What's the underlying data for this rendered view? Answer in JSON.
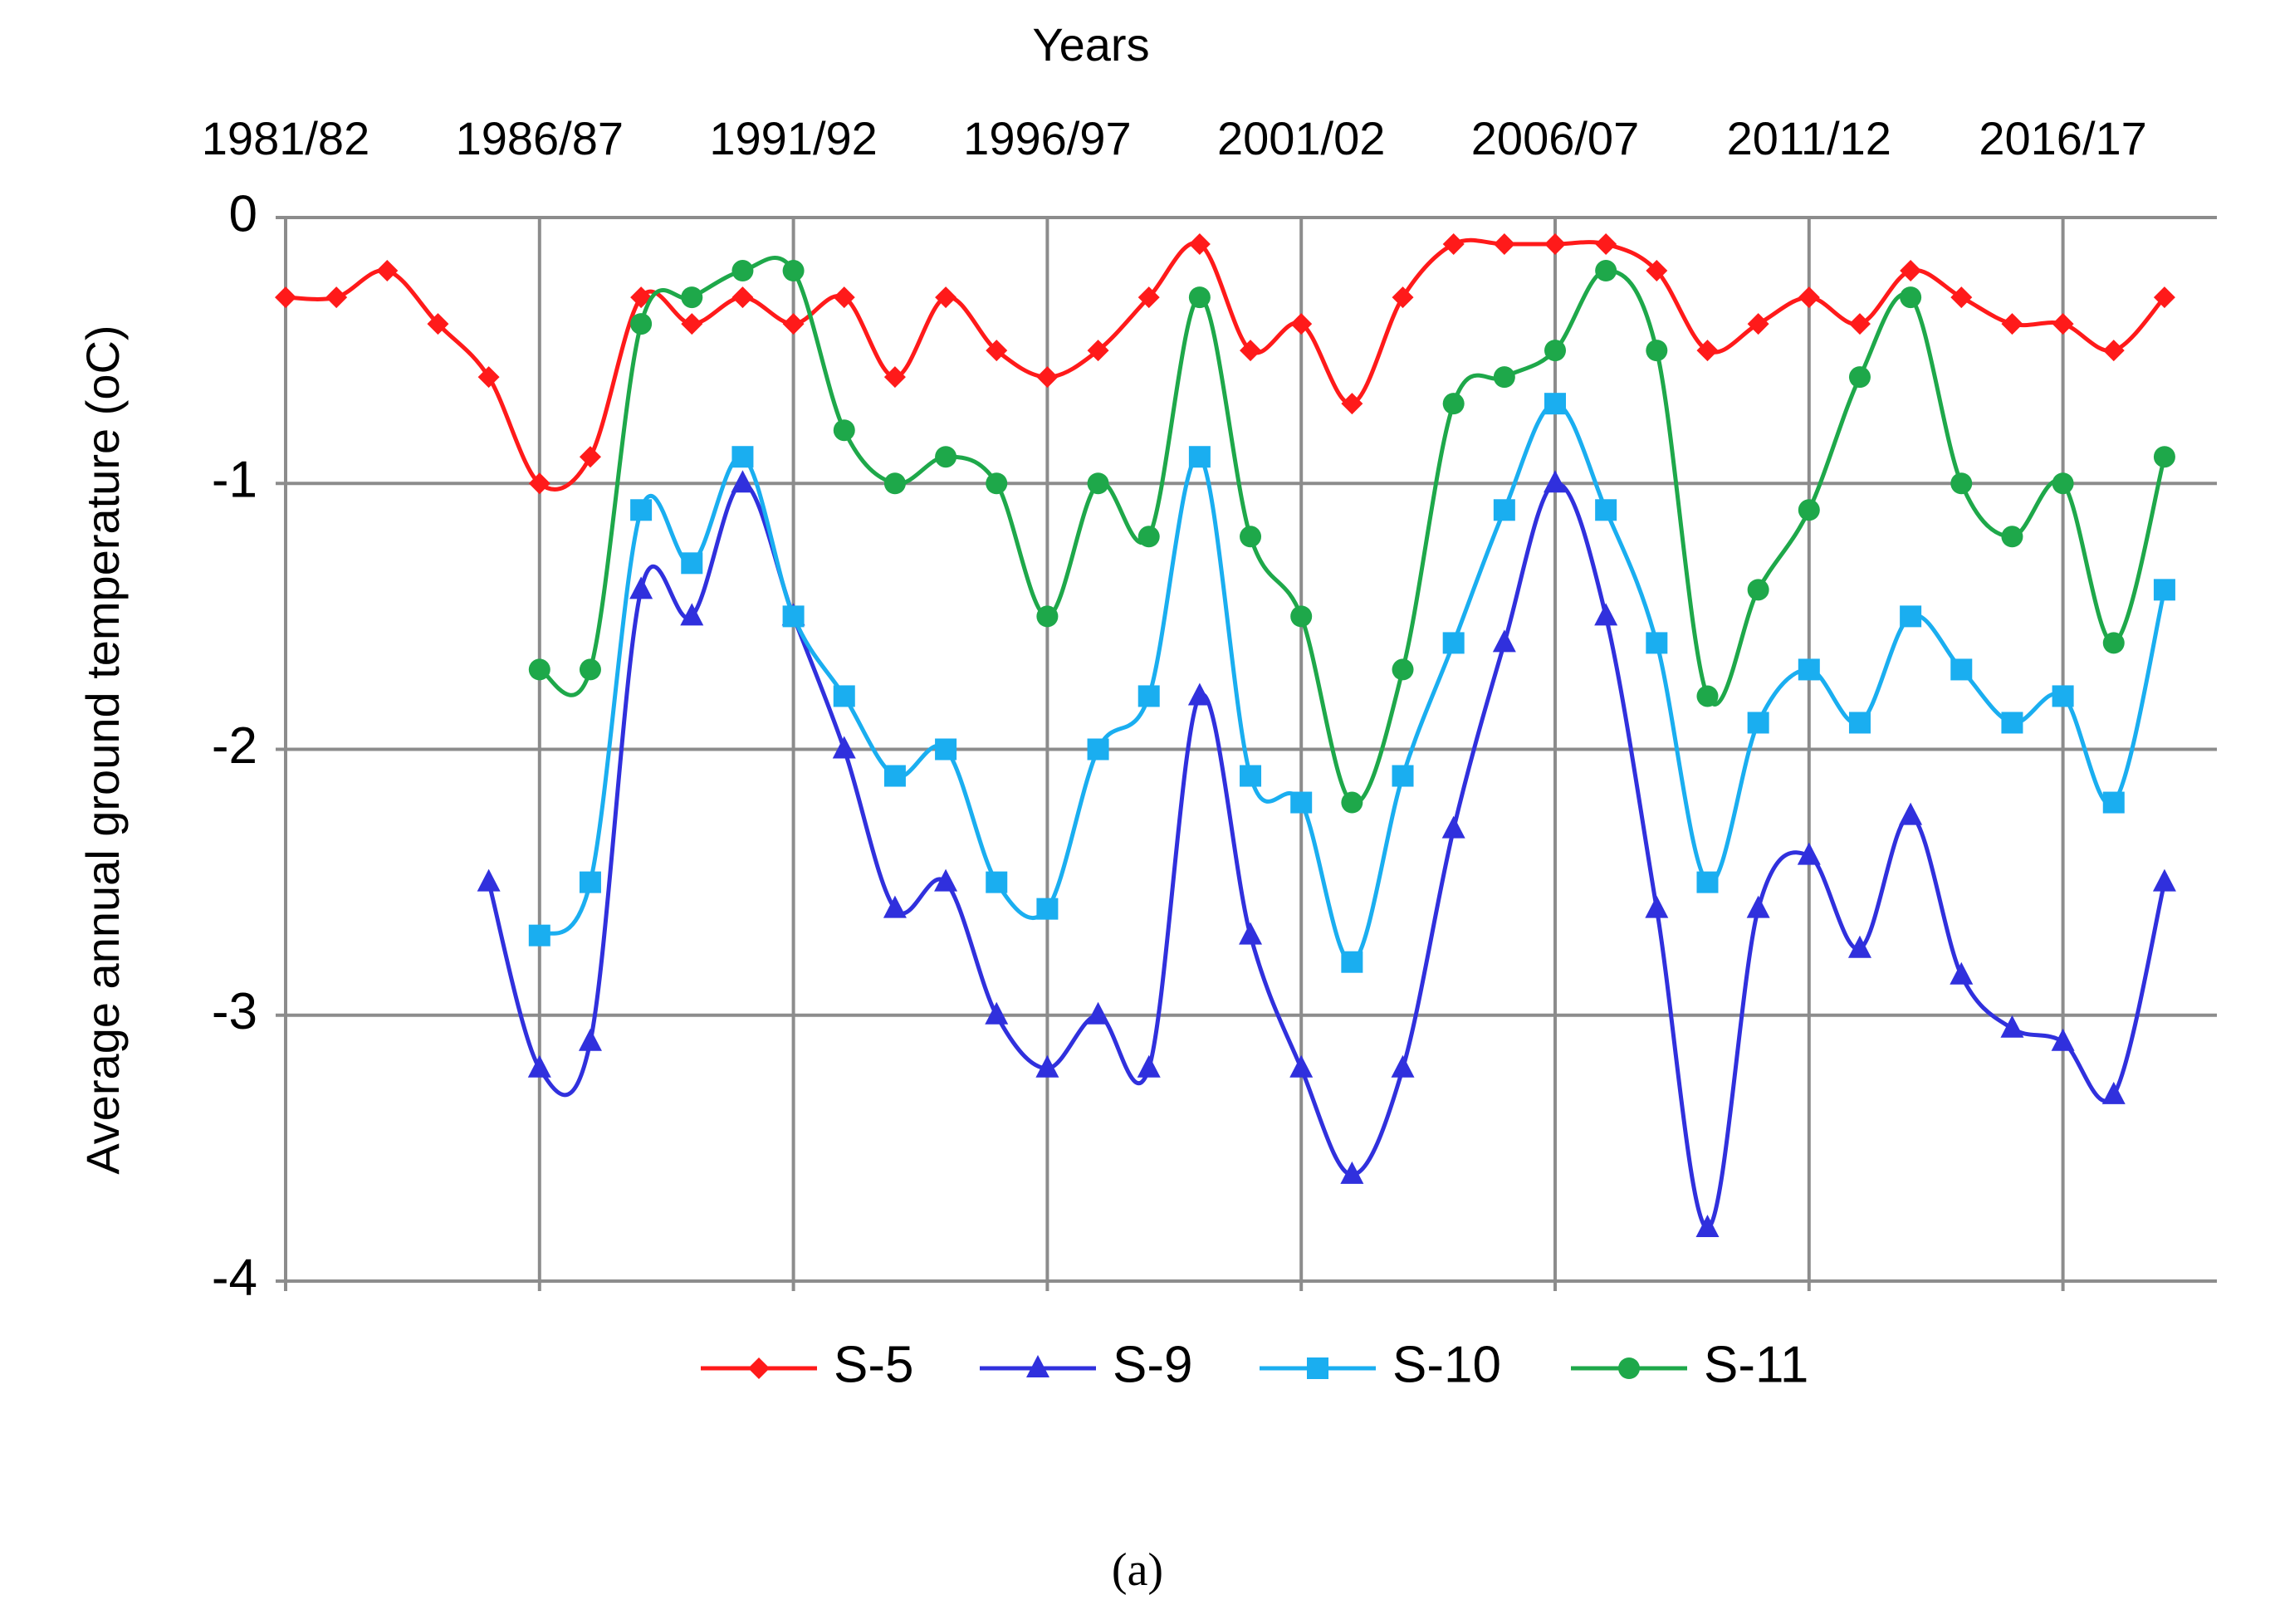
{
  "chart_data": {
    "type": "line",
    "title": "Years",
    "y_label": "Average annual ground temperature (oC)",
    "caption": "(a)",
    "categories": [
      "1981/82",
      null,
      null,
      null,
      null,
      "1986/87",
      null,
      null,
      null,
      null,
      "1991/92",
      null,
      null,
      null,
      null,
      "1996/97",
      null,
      null,
      null,
      null,
      "2001/02",
      null,
      null,
      null,
      null,
      "2006/07",
      null,
      null,
      null,
      null,
      "2011/12",
      null,
      null,
      null,
      null,
      "2016/17",
      null,
      null
    ],
    "ylim": [
      -4,
      0
    ],
    "yticks": [
      0,
      -1,
      -2,
      -3,
      -4
    ],
    "grid": true,
    "smooth": true,
    "legend": "bottom",
    "series": [
      {
        "name": "S-5",
        "color": "#ff1a1a",
        "marker": "diamond",
        "values": [
          -0.3,
          -0.3,
          -0.2,
          -0.4,
          -0.6,
          -1.0,
          -0.9,
          -0.3,
          -0.4,
          -0.3,
          -0.4,
          -0.3,
          -0.6,
          -0.3,
          -0.5,
          -0.6,
          -0.5,
          -0.3,
          -0.1,
          -0.5,
          -0.4,
          -0.7,
          -0.3,
          -0.1,
          -0.1,
          -0.1,
          -0.1,
          -0.2,
          -0.5,
          -0.4,
          -0.3,
          -0.4,
          -0.2,
          -0.3,
          -0.4,
          -0.4,
          -0.5,
          -0.3
        ]
      },
      {
        "name": "S-9",
        "color": "#3030dd",
        "marker": "triangle",
        "values": [
          null,
          null,
          null,
          null,
          -2.5,
          -3.2,
          -3.1,
          -1.4,
          -1.5,
          -1.0,
          -1.5,
          -2.0,
          -2.6,
          -2.5,
          -3.0,
          -3.2,
          -3.0,
          -3.2,
          -1.8,
          -2.7,
          -3.2,
          -3.6,
          -3.2,
          -2.3,
          -1.6,
          -1.0,
          -1.5,
          -2.6,
          -3.8,
          -2.6,
          -2.4,
          -2.75,
          -2.25,
          -2.85,
          -3.05,
          -3.1,
          -3.3,
          -2.5
        ]
      },
      {
        "name": "S-10",
        "color": "#1aaef0",
        "marker": "square",
        "values": [
          null,
          null,
          null,
          null,
          null,
          -2.7,
          -2.5,
          -1.1,
          -1.3,
          -0.9,
          -1.5,
          -1.8,
          -2.1,
          -2.0,
          -2.5,
          -2.6,
          -2.0,
          -1.8,
          -0.9,
          -2.1,
          -2.2,
          -2.8,
          -2.1,
          -1.6,
          -1.1,
          -0.7,
          -1.1,
          -1.6,
          -2.5,
          -1.9,
          -1.7,
          -1.9,
          -1.5,
          -1.7,
          -1.9,
          -1.8,
          -2.2,
          -1.4
        ]
      },
      {
        "name": "S-11",
        "color": "#1ea84a",
        "marker": "circle",
        "values": [
          null,
          null,
          null,
          null,
          null,
          -1.7,
          -1.7,
          -0.4,
          -0.3,
          -0.2,
          -0.2,
          -0.8,
          -1.0,
          -0.9,
          -1.0,
          -1.5,
          -1.0,
          -1.2,
          -0.3,
          -1.2,
          -1.5,
          -2.2,
          -1.7,
          -0.7,
          -0.6,
          -0.5,
          -0.2,
          -0.5,
          -1.8,
          -1.4,
          -1.1,
          -0.6,
          -0.3,
          -1.0,
          -1.2,
          -1.0,
          -1.6,
          -0.9
        ]
      }
    ]
  }
}
